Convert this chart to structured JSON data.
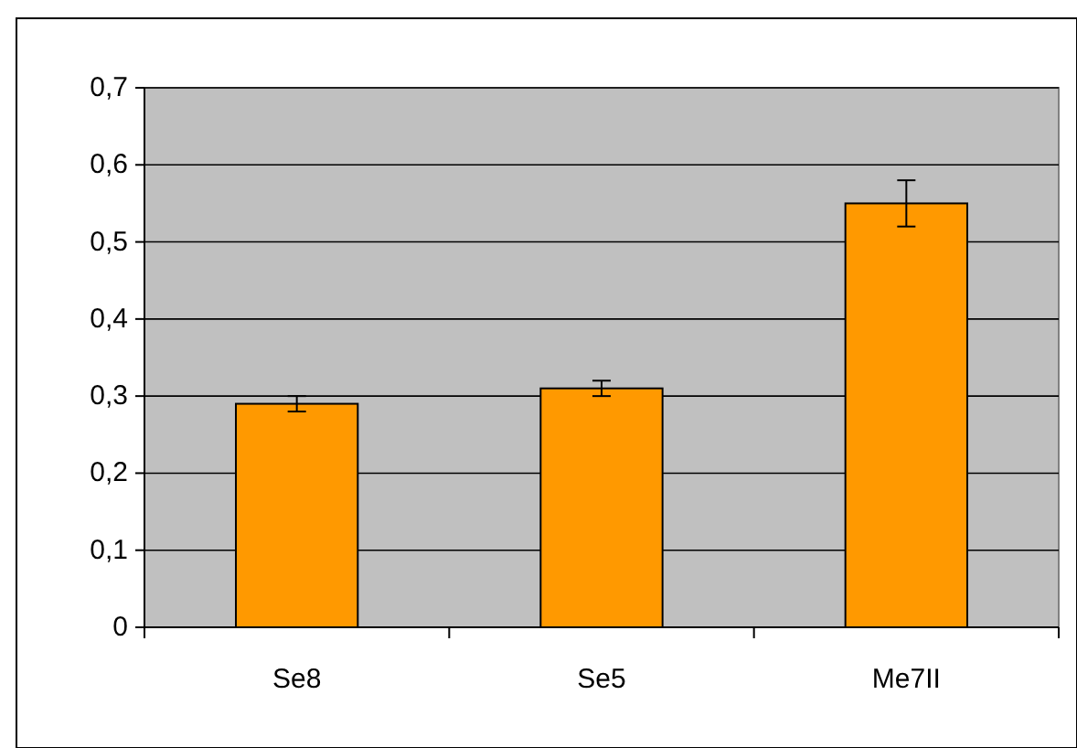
{
  "chart_data": {
    "type": "bar",
    "categories": [
      "Se8",
      "Se5",
      "Me7II"
    ],
    "values": [
      0.29,
      0.31,
      0.55
    ],
    "errors": [
      0.01,
      0.01,
      0.03
    ],
    "color": "#ff9900",
    "ylim": [
      0,
      0.7
    ],
    "yticks": [
      0,
      {
        "value": 0.1,
        "label": "0,1"
      },
      {
        "value": 0.2,
        "label": "0,2"
      },
      {
        "value": 0.3,
        "label": "0,3"
      },
      {
        "value": 0.4,
        "label": "0,4"
      },
      {
        "value": 0.5,
        "label": "0,5"
      },
      {
        "value": 0.6,
        "label": "0,6"
      },
      {
        "value": 0.7,
        "label": "0,7"
      }
    ],
    "grid": "y"
  }
}
